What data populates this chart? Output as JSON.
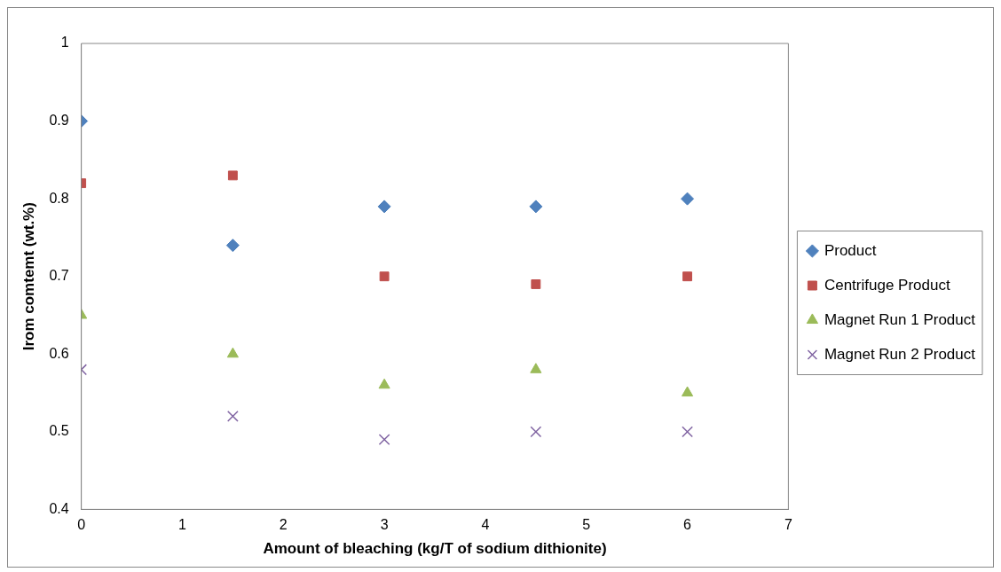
{
  "chart_data": {
    "type": "scatter",
    "xlabel": "Amount of bleaching (kg/T of sodium dithionite)",
    "ylabel": "Irom comtemt (wt.%)",
    "x": [
      0,
      1.5,
      3,
      4.5,
      6
    ],
    "series": [
      {
        "name": "Product",
        "color": "#4f81bd",
        "marker": "diamond",
        "values": [
          0.9,
          0.74,
          0.79,
          0.79,
          0.8
        ]
      },
      {
        "name": "Centrifuge Product",
        "color": "#c0504d",
        "marker": "square",
        "values": [
          0.82,
          0.83,
          0.7,
          0.69,
          0.7
        ]
      },
      {
        "name": "Magnet Run 1 Product",
        "color": "#9bbb59",
        "marker": "triangle",
        "values": [
          0.65,
          0.6,
          0.56,
          0.58,
          0.55
        ]
      },
      {
        "name": "Magnet Run 2 Product",
        "color": "#8064a2",
        "marker": "cross",
        "values": [
          0.58,
          0.52,
          0.49,
          0.5,
          0.5
        ]
      }
    ],
    "xlim": [
      0,
      7
    ],
    "xticks": [
      0,
      1,
      2,
      3,
      4,
      5,
      6,
      7
    ],
    "ylim": [
      0.4,
      1
    ],
    "yticks": [
      0.4,
      0.5,
      0.6,
      0.7,
      0.8,
      0.9,
      1
    ],
    "grid": false,
    "legend": "right"
  }
}
